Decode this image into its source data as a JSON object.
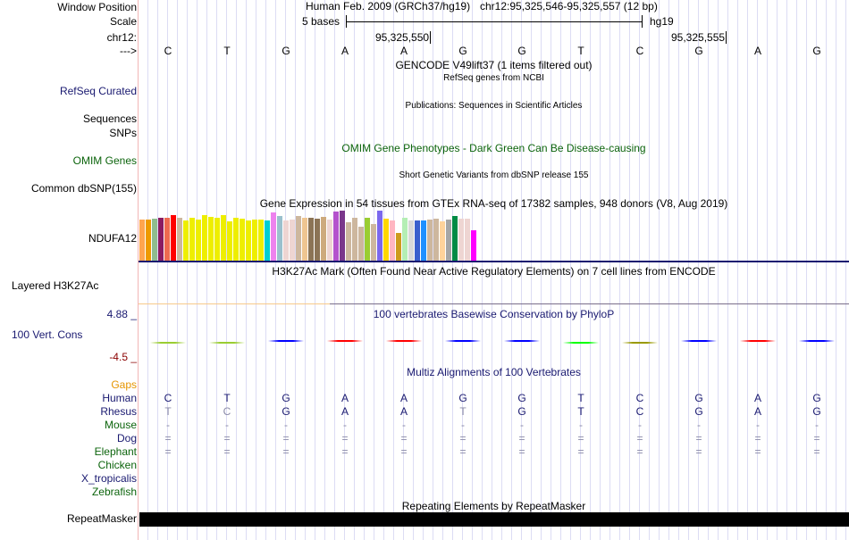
{
  "ruler": {
    "window_label": "Window Position",
    "scale_label": "Scale",
    "chr_label": "chr12:",
    "arrow_label": "--->",
    "assembly": "Human Feb. 2009 (GRCh37/hg19)",
    "position": "chr12:95,325,546-95,325,557 (12 bp)",
    "scale_text": "5 bases",
    "scale_db": "hg19",
    "tick1": "95,325,550",
    "tick2": "95,325,555",
    "bases": [
      "C",
      "T",
      "G",
      "A",
      "A",
      "G",
      "G",
      "T",
      "C",
      "G",
      "A",
      "G"
    ]
  },
  "tracks": {
    "gencode_title": "GENCODE V49lift37 (1 items filtered out)",
    "refseq_label": "RefSeq Curated",
    "refseq_title": "RefSeq genes from NCBI",
    "sequences_label": "Sequences",
    "snps_label": "SNPs",
    "pubs_title": "Publications: Sequences in Scientific Articles",
    "omim_title": "OMIM Gene Phenotypes - Dark Green Can Be Disease-causing",
    "omim_label": "OMIM Genes",
    "dbsnp_title": "Short Genetic Variants from dbSNP release 155",
    "dbsnp_label": "Common dbSNP(155)",
    "gtex_title": "Gene Expression in 54 tissues from GTEx RNA-seq of 17382 samples, 948 donors (V8, Aug 2019)",
    "gtex_label": "NDUFA12",
    "h3k_title": "H3K27Ac Mark (Often Found Near Active Regulatory Elements) on 7 cell lines from ENCODE",
    "h3k_label": "Layered H3K27Ac",
    "cons_title": "100 vertebrates Basewise Conservation by PhyloP",
    "cons_label": "100 Vert. Cons",
    "cons_max": "4.88 _",
    "cons_min": "-4.5 _",
    "multiz_title": "Multiz Alignments of 100 Vertebrates",
    "repeat_title": "Repeating Elements by RepeatMasker",
    "repeat_label": "RepeatMasker"
  },
  "gtex": {
    "values": [
      46,
      46,
      47,
      48,
      48,
      51,
      48,
      45,
      48,
      46,
      51,
      49,
      48,
      51,
      44,
      48,
      47,
      45,
      46,
      46,
      45,
      54,
      50,
      45,
      46,
      50,
      48,
      48,
      47,
      49,
      46,
      55,
      56,
      43,
      48,
      38,
      48,
      41,
      56,
      47,
      45,
      31,
      48,
      45,
      45,
      45,
      46,
      47,
      44,
      46,
      50,
      47,
      47,
      34
    ],
    "colors": [
      "#FFA54F",
      "#EE9A00",
      "#8FBC8F",
      "#8B1C62",
      "#EE6A50",
      "#FF0000",
      "#CDB79E",
      "#EEEE00",
      "#EEEE00",
      "#EEEE00",
      "#EEEE00",
      "#EEEE00",
      "#EEEE00",
      "#EEEE00",
      "#EEEE00",
      "#EEEE00",
      "#EEEE00",
      "#EEEE00",
      "#EEEE00",
      "#EEEE00",
      "#00CED1",
      "#EE82EE",
      "#9AC0CD",
      "#EED5D2",
      "#EED5D2",
      "#CDB79E",
      "#EEC591",
      "#8B7355",
      "#8B7355",
      "#CDAA7D",
      "#EED5D2",
      "#B452CD",
      "#7A378B",
      "#CDB79E",
      "#CDB79E",
      "#CDB79E",
      "#9ACD32",
      "#CDB79E",
      "#7B68EE",
      "#FFD700",
      "#FFB6C1",
      "#CD9B1D",
      "#B4EEB4",
      "#D9D9D9",
      "#3A5FCD",
      "#1E90FF",
      "#CDB79E",
      "#CDB79E",
      "#FFD39B",
      "#A6A6A6",
      "#008B45",
      "#EED5D2",
      "#EED5D2",
      "#FF00FF"
    ]
  },
  "phylop_colors": [
    "#9acd32",
    "#9acd32",
    "#0000ff",
    "#ff0000",
    "#ff0000",
    "#0000ff",
    "#0000ff",
    "#00ff00",
    "#999900",
    "#0000ff",
    "#ff0000",
    "#0000ff"
  ],
  "multiz": {
    "species": [
      {
        "name": "Gaps",
        "color": "#e69500",
        "seq": []
      },
      {
        "name": "Human",
        "color": "#191970",
        "seq": [
          "C",
          "T",
          "G",
          "A",
          "A",
          "G",
          "G",
          "T",
          "C",
          "G",
          "A",
          "G"
        ]
      },
      {
        "name": "Rhesus",
        "color": "#191970",
        "seq": [
          "T",
          "C",
          "G",
          "A",
          "A",
          "T",
          "G",
          "T",
          "C",
          "G",
          "A",
          "G"
        ],
        "diff": [
          0,
          1,
          5
        ]
      },
      {
        "name": "Mouse",
        "color": "#0c640c",
        "seq": [
          "-",
          "-",
          "-",
          "-",
          "-",
          "-",
          "-",
          "-",
          "-",
          "-",
          "-",
          "-"
        ]
      },
      {
        "name": "Dog",
        "color": "#191970",
        "seq": [
          "=",
          "=",
          "=",
          "=",
          "=",
          "=",
          "=",
          "=",
          "=",
          "=",
          "=",
          "="
        ]
      },
      {
        "name": "Elephant",
        "color": "#0c640c",
        "seq": [
          "=",
          "=",
          "=",
          "=",
          "=",
          "=",
          "=",
          "=",
          "=",
          "=",
          "=",
          "="
        ]
      },
      {
        "name": "Chicken",
        "color": "#0c640c",
        "seq": []
      },
      {
        "name": "X_tropicalis",
        "color": "#191970",
        "seq": []
      },
      {
        "name": "Zebrafish",
        "color": "#0c640c",
        "seq": []
      }
    ]
  }
}
